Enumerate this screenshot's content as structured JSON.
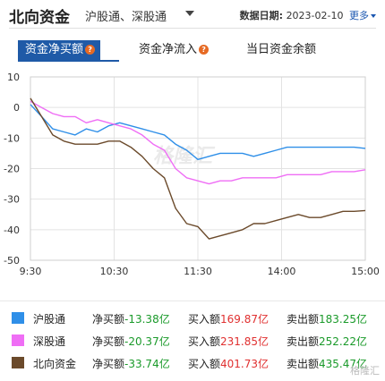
{
  "header": {
    "title": "北向资金",
    "subtitle": "沪股通、深股通",
    "date_label": "数据日期:",
    "date_value": "2023-02-10",
    "more_label": "更多"
  },
  "tabs": [
    {
      "label": "资金净买额",
      "active": true,
      "help": "?"
    },
    {
      "label": "资金净流入",
      "active": false,
      "help": "?"
    },
    {
      "label": "当日资金余额",
      "active": false,
      "help": ""
    }
  ],
  "watermark": "格隆汇",
  "chart_data": {
    "type": "line",
    "x_ticks": [
      "9:30",
      "10:30",
      "11:30",
      "14:00",
      "15:00"
    ],
    "y_ticks": [
      10,
      0,
      -10,
      -20,
      -30,
      -40,
      -50
    ],
    "ylim": [
      -50,
      10
    ],
    "grid": true,
    "series": [
      {
        "name": "沪股通",
        "color": "#2f8fe8",
        "values": [
          1,
          -3,
          -7,
          -8,
          -9,
          -7,
          -8,
          -6,
          -5,
          -6,
          -7,
          -8,
          -9,
          -12,
          -14,
          -17,
          -16,
          -15,
          -15,
          -15,
          -16,
          -15,
          -14,
          -13,
          -13,
          -13,
          -13,
          -13,
          -13,
          -13,
          -13.38
        ]
      },
      {
        "name": "深股通",
        "color": "#ef6ef5",
        "values": [
          2,
          0,
          -2,
          -3,
          -3,
          -5,
          -4,
          -5,
          -6,
          -7,
          -9,
          -12,
          -14,
          -20,
          -23,
          -24,
          -25,
          -24,
          -24,
          -23,
          -23,
          -23,
          -23,
          -22,
          -22,
          -22,
          -22,
          -21,
          -21,
          -21,
          -20.37
        ]
      },
      {
        "name": "北向资金",
        "color": "#6b4a2b",
        "values": [
          3,
          -3,
          -9,
          -11,
          -12,
          -12,
          -12,
          -11,
          -11,
          -13,
          -16,
          -20,
          -23,
          -33,
          -38,
          -39,
          -43,
          -42,
          -41,
          -40,
          -38,
          -38,
          -37,
          -36,
          -35,
          -36,
          -36,
          -35,
          -34,
          -34,
          -33.74
        ]
      }
    ]
  },
  "legend": [
    {
      "name": "沪股通",
      "color": "#2f8fe8",
      "net_label": "净买额",
      "net": "-13.38亿",
      "buy_label": "买入额",
      "buy": "169.87亿",
      "sell_label": "卖出额",
      "sell": "183.25亿"
    },
    {
      "name": "深股通",
      "color": "#ef6ef5",
      "net_label": "净买额",
      "net": "-20.37亿",
      "buy_label": "买入额",
      "buy": "231.85亿",
      "sell_label": "卖出额",
      "sell": "252.22亿"
    },
    {
      "name": "北向资金",
      "color": "#6b4a2b",
      "net_label": "净买额",
      "net": "-33.74亿",
      "buy_label": "买入额",
      "buy": "401.73亿",
      "sell_label": "卖出额",
      "sell": "435.47亿"
    }
  ],
  "corner_mark": "格隆汇"
}
